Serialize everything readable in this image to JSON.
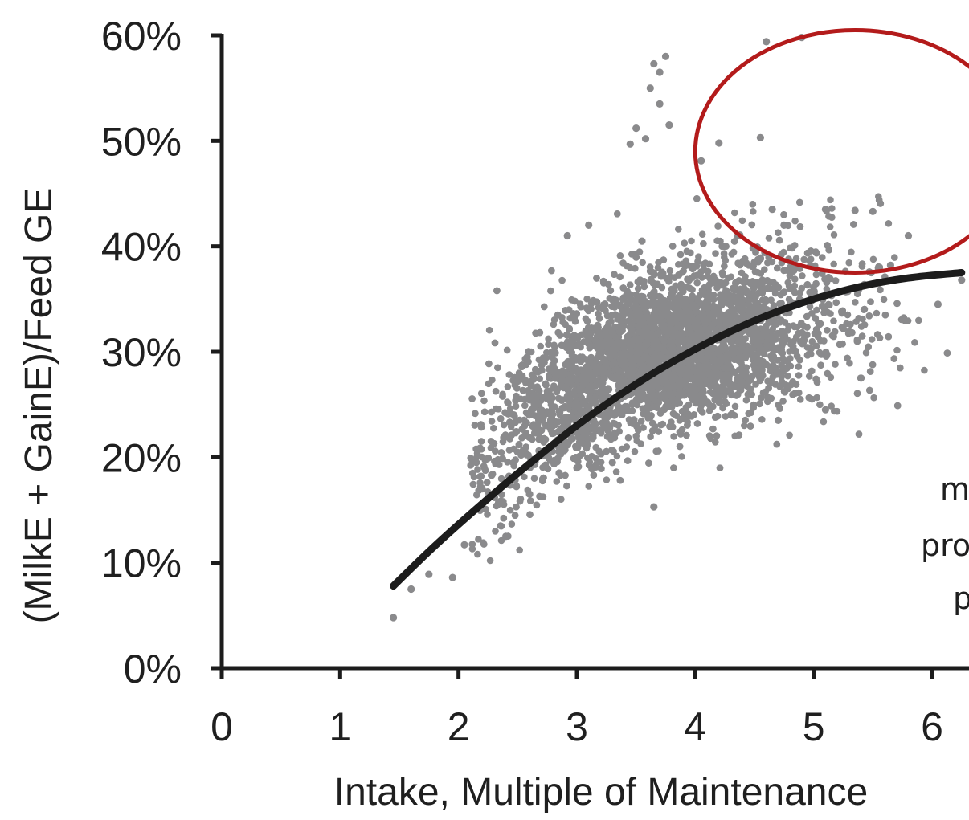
{
  "chart_data": {
    "type": "scatter",
    "title": "",
    "xlabel": "Intake, Multiple of Maintenance",
    "ylabel": "(MilkE + GainE)/Feed GE",
    "xlim": [
      0,
      6.35
    ],
    "ylim": [
      0,
      60
    ],
    "x_ticks": [
      "0",
      "1",
      "2",
      "3",
      "4",
      "5",
      "6"
    ],
    "y_ticks": [
      "0%",
      "10%",
      "20%",
      "30%",
      "40%",
      "50%",
      "60%"
    ],
    "grid": false,
    "legend": "none",
    "series": [
      {
        "kind": "scatter-cloud",
        "color": "#8a8a8c",
        "point_count_approx": 5000,
        "cloud_center_trend": [
          {
            "x": 2.2,
            "y": 19
          },
          {
            "x": 2.8,
            "y": 25
          },
          {
            "x": 3.5,
            "y": 30
          },
          {
            "x": 4.2,
            "y": 31
          },
          {
            "x": 5.0,
            "y": 33
          },
          {
            "x": 5.7,
            "y": 35
          }
        ],
        "outlier_points": [
          {
            "x": 1.45,
            "y": 4.8
          },
          {
            "x": 1.6,
            "y": 7.5
          },
          {
            "x": 1.75,
            "y": 8.9
          },
          {
            "x": 1.95,
            "y": 8.6
          },
          {
            "x": 3.65,
            "y": 15.3
          },
          {
            "x": 4.55,
            "y": 50.3
          },
          {
            "x": 4.6,
            "y": 59.4
          },
          {
            "x": 4.9,
            "y": 59.8
          },
          {
            "x": 3.75,
            "y": 58.0
          },
          {
            "x": 3.65,
            "y": 57.3
          },
          {
            "x": 3.7,
            "y": 56.5
          },
          {
            "x": 3.62,
            "y": 55.0
          },
          {
            "x": 3.7,
            "y": 53.5
          },
          {
            "x": 3.78,
            "y": 51.5
          },
          {
            "x": 3.5,
            "y": 51.2
          },
          {
            "x": 3.45,
            "y": 49.7
          },
          {
            "x": 3.58,
            "y": 50.2
          },
          {
            "x": 4.2,
            "y": 49.8
          },
          {
            "x": 4.05,
            "y": 48.1
          },
          {
            "x": 5.1,
            "y": 43.5
          },
          {
            "x": 5.5,
            "y": 43.3
          },
          {
            "x": 6.05,
            "y": 34.5
          },
          {
            "x": 6.25,
            "y": 36.8
          },
          {
            "x": 2.15,
            "y": 19.5
          },
          {
            "x": 2.2,
            "y": 17.0
          },
          {
            "x": 2.05,
            "y": 11.7
          },
          {
            "x": 2.4,
            "y": 12.5
          },
          {
            "x": 2.6,
            "y": 16.5
          },
          {
            "x": 2.5,
            "y": 27.2
          },
          {
            "x": 2.58,
            "y": 29.5
          },
          {
            "x": 3.1,
            "y": 42.0
          },
          {
            "x": 2.92,
            "y": 41.0
          },
          {
            "x": 3.55,
            "y": 40.5
          },
          {
            "x": 4.65,
            "y": 43.5
          },
          {
            "x": 4.75,
            "y": 42.0
          },
          {
            "x": 5.35,
            "y": 43.4
          },
          {
            "x": 5.8,
            "y": 41.0
          },
          {
            "x": 5.65,
            "y": 38.2
          },
          {
            "x": 4.3,
            "y": 24.0
          },
          {
            "x": 4.7,
            "y": 23.5
          },
          {
            "x": 5.1,
            "y": 24.5
          },
          {
            "x": 5.4,
            "y": 27.5
          },
          {
            "x": 3.0,
            "y": 19.0
          },
          {
            "x": 3.3,
            "y": 19.5
          },
          {
            "x": 2.85,
            "y": 18.5
          }
        ]
      },
      {
        "kind": "fit-curve",
        "color": "#1c1c1c",
        "points": [
          {
            "x": 1.45,
            "y": 7.8
          },
          {
            "x": 1.8,
            "y": 11.6
          },
          {
            "x": 2.2,
            "y": 15.6
          },
          {
            "x": 2.6,
            "y": 19.4
          },
          {
            "x": 3.0,
            "y": 23.0
          },
          {
            "x": 3.4,
            "y": 26.2
          },
          {
            "x": 3.8,
            "y": 29.0
          },
          {
            "x": 4.2,
            "y": 31.4
          },
          {
            "x": 4.6,
            "y": 33.4
          },
          {
            "x": 5.0,
            "y": 35.0
          },
          {
            "x": 5.4,
            "y": 36.2
          },
          {
            "x": 5.8,
            "y": 37.0
          },
          {
            "x": 6.25,
            "y": 37.5
          }
        ]
      }
    ],
    "annotations": [
      {
        "kind": "ellipse",
        "color": "#b31b1b",
        "cx": 5.35,
        "cy": 49.0,
        "rx_units": 1.35,
        "ry_units": 11.5
      }
    ],
    "cut_off_text_lines": [
      "m",
      "pro",
      "p"
    ]
  }
}
